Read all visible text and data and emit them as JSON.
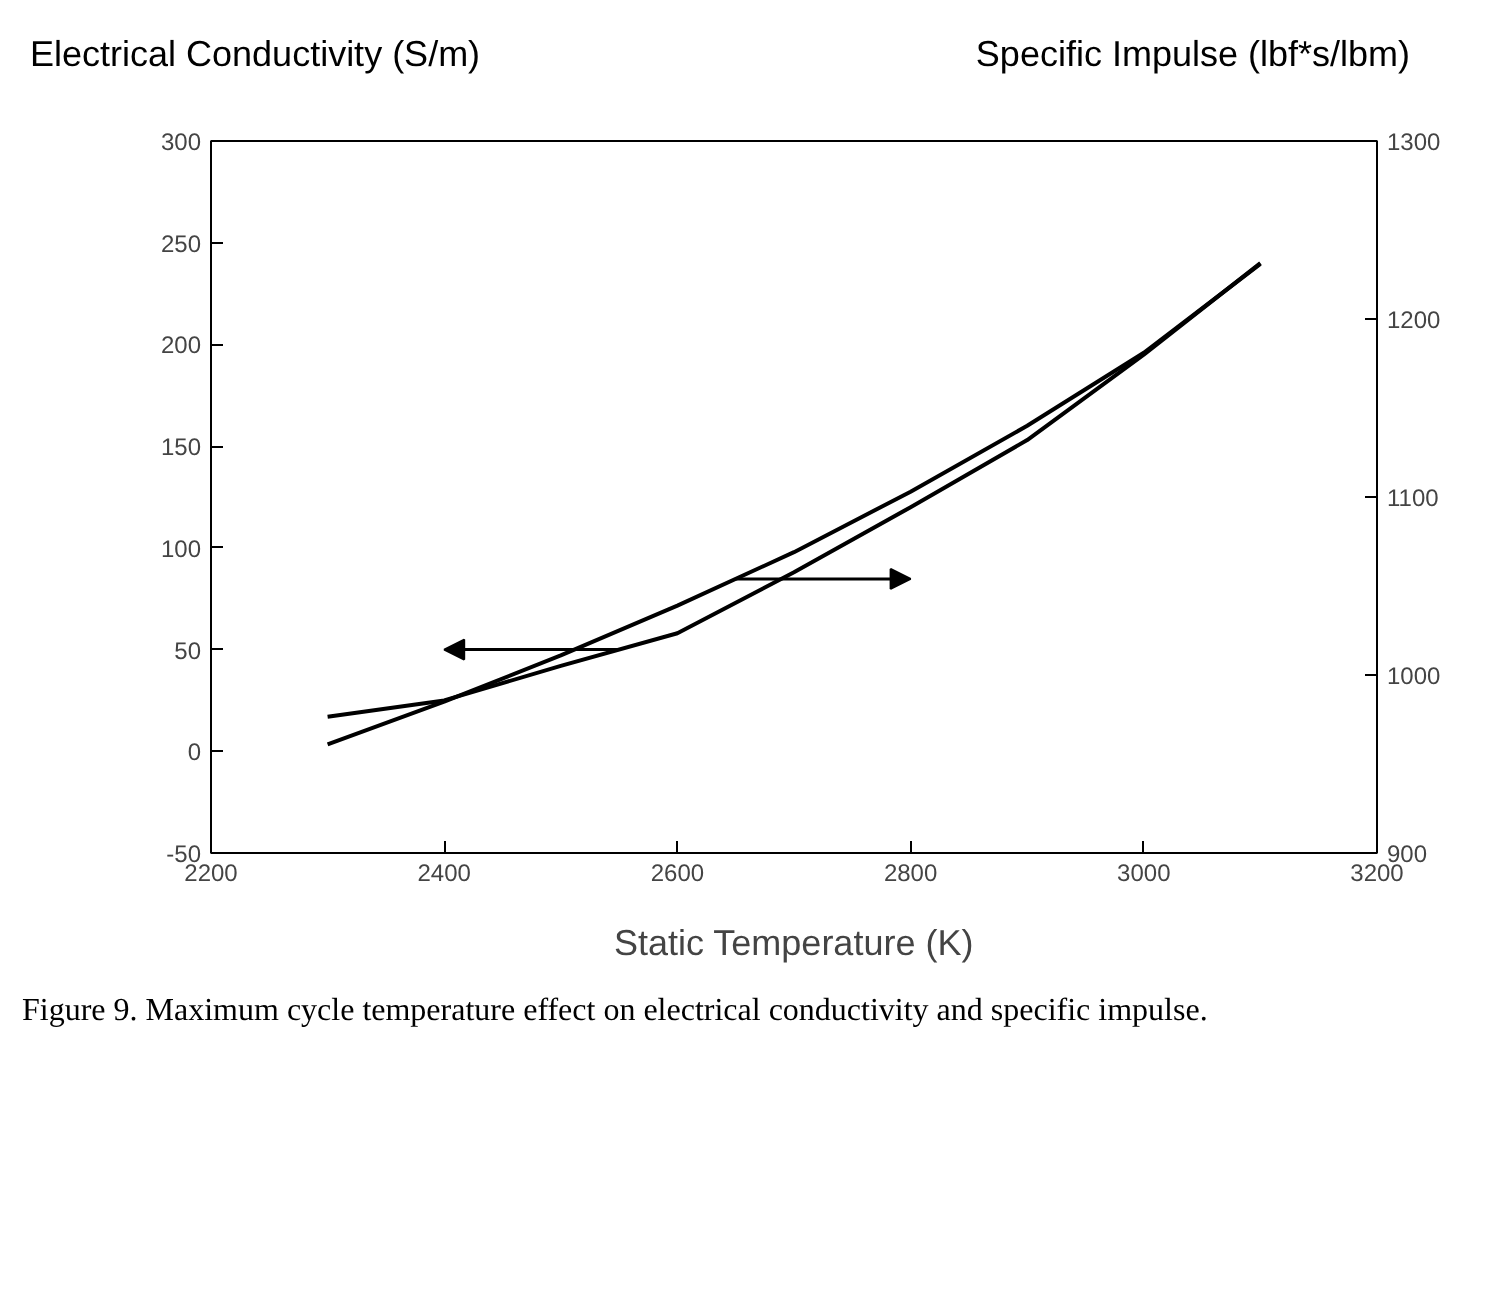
{
  "chart_data": {
    "type": "line",
    "xlabel": "Static Temperature (K)",
    "ylabel": "Electrical Conductivity (S/m)",
    "y2label": "Specific Impulse (lbf*s/lbm)",
    "x": [
      2300,
      2400,
      2500,
      2600,
      2700,
      2800,
      2900,
      3000,
      3100
    ],
    "series": [
      {
        "color": "#000000",
        "axis": "y",
        "values": [
          17,
          25,
          42,
          58,
          88,
          120,
          153,
          195,
          240
        ]
      },
      {
        "color": "#000000",
        "axis": "y2",
        "values": [
          961,
          985,
          1011,
          1039,
          1069,
          1103,
          1140,
          1181,
          1231
        ]
      }
    ],
    "xlim": [
      2200,
      3200
    ],
    "xticks": [
      2200,
      2400,
      2600,
      2800,
      3000,
      3200
    ],
    "ylim": [
      -50,
      300
    ],
    "yticks": [
      -50,
      0,
      50,
      100,
      150,
      200,
      250,
      300
    ],
    "y2lim": [
      900,
      1300
    ],
    "y2ticks": [
      900,
      1000,
      1100,
      1200,
      1300
    ],
    "marker": "none",
    "line_style": "solid",
    "annotations": [
      "Figure 9.   Maximum cycle temperature effect on electrical conductivity and specific impulse."
    ]
  }
}
